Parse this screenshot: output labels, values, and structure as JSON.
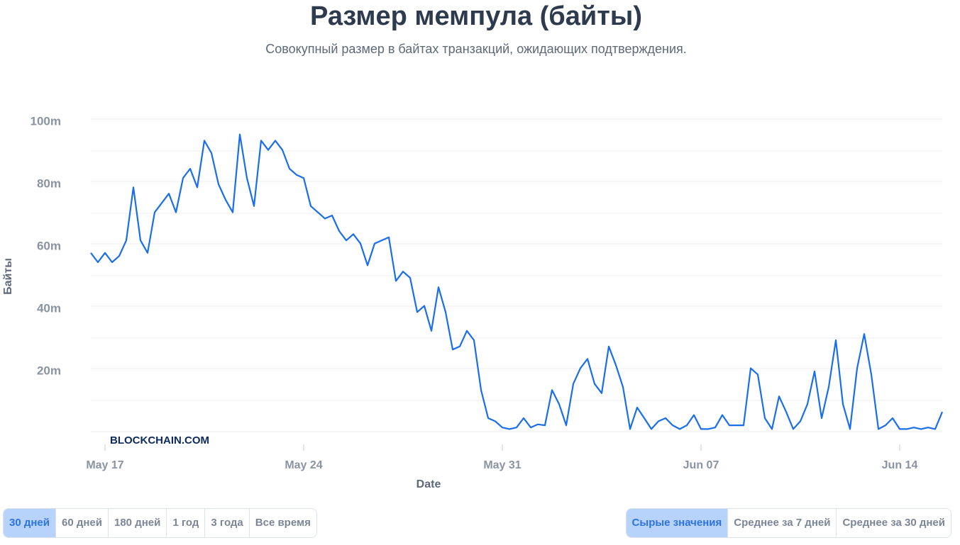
{
  "chart_data": {
    "type": "line",
    "title": "Размер мемпула (байты)",
    "subtitle": "Совокупный размер в байтах транзакций, ожидающих подтверждения.",
    "x_label": "Date",
    "y_label": "Байты",
    "watermark": "BLOCKCHAIN.COM",
    "color": "#1a6ee8",
    "xlim": [
      -0.5,
      29.5
    ],
    "xticks": [
      {
        "value": 0,
        "label": "May 17"
      },
      {
        "value": 7,
        "label": "May 24"
      },
      {
        "value": 14,
        "label": "May 31"
      },
      {
        "value": 21,
        "label": "Jun 07"
      },
      {
        "value": 28,
        "label": "Jun 14"
      }
    ],
    "ylim": [
      0,
      100
    ],
    "yticks": [
      {
        "value": 20,
        "label": "20m"
      },
      {
        "value": 40,
        "label": "40m"
      },
      {
        "value": 60,
        "label": "60m"
      },
      {
        "value": 80,
        "label": "80m"
      },
      {
        "value": 100,
        "label": "100m"
      }
    ],
    "minor_yticks": [
      0,
      10,
      30,
      50,
      70,
      90
    ],
    "grid": true,
    "x": [
      -0.5,
      -0.25,
      0,
      0.25,
      0.5,
      0.75,
      1,
      1.25,
      1.5,
      1.75,
      2,
      2.25,
      2.5,
      2.75,
      3,
      3.25,
      3.5,
      3.75,
      4,
      4.25,
      4.5,
      4.75,
      5,
      5.25,
      5.5,
      5.75,
      6,
      6.25,
      6.5,
      6.75,
      7,
      7.25,
      7.5,
      7.75,
      8,
      8.25,
      8.5,
      8.75,
      9,
      9.25,
      9.5,
      9.75,
      10,
      10.25,
      10.5,
      10.75,
      11,
      11.25,
      11.5,
      11.75,
      12,
      12.25,
      12.5,
      12.75,
      13,
      13.25,
      13.5,
      13.75,
      14,
      14.25,
      14.5,
      14.75,
      15,
      15.25,
      15.5,
      15.75,
      16,
      16.25,
      16.5,
      16.75,
      17,
      17.25,
      17.5,
      17.75,
      18,
      18.25,
      18.5,
      18.75,
      19,
      19.25,
      19.5,
      19.75,
      20,
      20.25,
      20.5,
      20.75,
      21,
      21.25,
      21.5,
      21.75,
      22,
      22.25,
      22.5,
      22.75,
      23,
      23.25,
      23.5,
      23.75,
      24,
      24.25,
      24.5,
      24.75,
      25,
      25.25,
      25.5,
      25.75,
      26,
      26.25,
      26.5,
      26.75,
      27,
      27.25,
      27.5,
      27.75,
      28,
      28.25,
      28.5,
      28.75,
      29,
      29.25,
      29.5
    ],
    "values": [
      58,
      55,
      58,
      55,
      57,
      62,
      79,
      62,
      58,
      71,
      74,
      77,
      71,
      82,
      85,
      79,
      94,
      90,
      80,
      75,
      71,
      96,
      82,
      73,
      94,
      91,
      94,
      91,
      85,
      83,
      82,
      73,
      71,
      69,
      70,
      65,
      62,
      64,
      61,
      54,
      61,
      62,
      63,
      49,
      52,
      50,
      39,
      41,
      33,
      47,
      39,
      27,
      28,
      33,
      30,
      14,
      5,
      4,
      2,
      1.5,
      2,
      5,
      2,
      3,
      2.7,
      14,
      9.5,
      2.7,
      16,
      21,
      24,
      16,
      13,
      28,
      22,
      15,
      1.5,
      8.4,
      5,
      1.5,
      4,
      5,
      2.7,
      1.5,
      2.7,
      6,
      1.5,
      1.5,
      2,
      6,
      2.7,
      2.7,
      2.7,
      21,
      19,
      5,
      1.5,
      12,
      7,
      1.5,
      4,
      9.5,
      20,
      5,
      15,
      30,
      9.5,
      1.5,
      21,
      32,
      19,
      1.5,
      2.7,
      5,
      1.5,
      1.5,
      2,
      1.5,
      2,
      1.5,
      7
    ]
  },
  "controls": {
    "periods": [
      "30 дней",
      "60 дней",
      "180 дней",
      "1 год",
      "3 года",
      "Все время"
    ],
    "modes": [
      "Сырые значения",
      "Среднее за 7 дней",
      "Среднее за 30 дней"
    ]
  }
}
